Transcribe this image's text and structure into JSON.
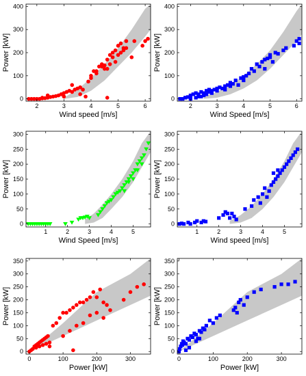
{
  "chart_data": [
    {
      "type": "scatter",
      "xlabel": "Wind speed [m/s]",
      "ylabel": "Power [kW]",
      "xlim": [
        1.6,
        6.2
      ],
      "ylim": [
        -10,
        410
      ],
      "xticks": [
        2,
        3,
        4,
        5,
        6
      ],
      "yticks": [
        0,
        100,
        200,
        300,
        400
      ],
      "band": {
        "x": [
          3.0,
          3.5,
          4.0,
          4.5,
          5.0,
          5.5,
          6.0,
          6.2
        ],
        "lower": [
          0,
          8,
          35,
          80,
          140,
          200,
          270,
          300
        ],
        "upper": [
          5,
          40,
          90,
          150,
          220,
          300,
          390,
          410
        ]
      },
      "series": [
        {
          "color": "#ff0000",
          "marker": "circle",
          "x": [
            1.7,
            1.8,
            1.9,
            2.0,
            2.1,
            2.2,
            2.3,
            2.4,
            2.5,
            2.6,
            2.7,
            2.2,
            2.4,
            2.8,
            2.9,
            3.0,
            3.1,
            3.0,
            3.2,
            3.3,
            3.4,
            3.5,
            3.6,
            3.7,
            3.6,
            3.8,
            3.3,
            3.9,
            4.0,
            4.1,
            4.2,
            4.3,
            4.4,
            4.5,
            4.6,
            4.7,
            4.8,
            4.9,
            5.0,
            5.1,
            5.2,
            5.3,
            4.6,
            4.7,
            4.8,
            4.9,
            5.0,
            5.1,
            5.2,
            5.3,
            5.5,
            5.6,
            5.9,
            6.0,
            6.1,
            4.0,
            4.2,
            4.5,
            4.6,
            4.4
          ],
          "y": [
            0,
            0,
            0,
            0,
            0,
            2,
            3,
            5,
            8,
            10,
            12,
            5,
            15,
            15,
            20,
            25,
            30,
            10,
            35,
            30,
            40,
            45,
            50,
            40,
            20,
            10,
            60,
            75,
            100,
            120,
            110,
            140,
            150,
            145,
            170,
            190,
            200,
            210,
            230,
            240,
            220,
            250,
            130,
            150,
            180,
            160,
            190,
            200,
            210,
            220,
            180,
            250,
            230,
            250,
            260,
            90,
            120,
            130,
            5,
            140
          ]
        }
      ]
    },
    {
      "type": "scatter",
      "xlabel": "Wind Speed [m/s]",
      "ylabel": "Power [kW]",
      "xlim": [
        1.5,
        6.2
      ],
      "ylim": [
        -10,
        410
      ],
      "xticks": [
        2,
        3,
        4,
        5,
        6
      ],
      "yticks": [
        0,
        100,
        200,
        300,
        400
      ],
      "band": {
        "x": [
          2.5,
          3.0,
          3.5,
          4.0,
          4.5,
          5.0,
          5.5,
          6.0,
          6.2
        ],
        "lower": [
          0,
          5,
          20,
          45,
          80,
          130,
          190,
          250,
          280
        ],
        "upper": [
          10,
          30,
          60,
          100,
          150,
          210,
          290,
          380,
          410
        ]
      },
      "series": [
        {
          "color": "#0000ff",
          "marker": "square",
          "x": [
            1.6,
            1.7,
            1.8,
            1.9,
            2.0,
            2.0,
            2.1,
            2.2,
            2.2,
            2.3,
            2.3,
            2.4,
            2.5,
            2.5,
            2.6,
            2.6,
            2.7,
            2.7,
            2.8,
            2.8,
            2.9,
            3.0,
            3.0,
            3.1,
            3.2,
            3.3,
            3.3,
            3.4,
            3.5,
            3.5,
            3.6,
            3.7,
            3.8,
            3.9,
            4.0,
            4.0,
            4.1,
            4.2,
            4.3,
            4.4,
            4.5,
            4.6,
            4.7,
            4.8,
            4.8,
            4.9,
            5.0,
            5.0,
            5.1,
            5.2,
            5.3,
            5.5,
            5.6,
            5.9,
            6.0,
            6.1,
            6.1,
            1.8,
            2.0,
            2.4
          ],
          "y": [
            0,
            0,
            5,
            8,
            10,
            15,
            20,
            5,
            25,
            20,
            10,
            30,
            25,
            15,
            35,
            20,
            30,
            40,
            35,
            25,
            40,
            45,
            35,
            50,
            45,
            55,
            40,
            60,
            70,
            55,
            65,
            80,
            60,
            90,
            80,
            95,
            100,
            110,
            130,
            120,
            150,
            140,
            160,
            170,
            130,
            175,
            180,
            190,
            160,
            200,
            195,
            210,
            220,
            230,
            250,
            260,
            240,
            5,
            0,
            10
          ]
        }
      ]
    },
    {
      "type": "scatter",
      "xlabel": "Wind Speed [m/s]",
      "ylabel": "Power [kW]",
      "xlim": [
        0.1,
        5.8
      ],
      "ylim": [
        -10,
        310
      ],
      "xticks": [
        1,
        2,
        3,
        4,
        5
      ],
      "yticks": [
        0,
        50,
        100,
        150,
        200,
        250,
        300
      ],
      "band": {
        "x": [
          2.8,
          3.2,
          3.6,
          4.0,
          4.5,
          5.0,
          5.4,
          5.8
        ],
        "lower": [
          0,
          5,
          20,
          50,
          90,
          140,
          190,
          240
        ],
        "upper": [
          15,
          35,
          65,
          100,
          150,
          210,
          270,
          310
        ]
      },
      "series": [
        {
          "color": "#00ff00",
          "marker": "triangle-down",
          "x": [
            0.2,
            0.3,
            0.4,
            0.5,
            0.6,
            0.7,
            0.8,
            0.9,
            1.0,
            1.1,
            1.2,
            1.9,
            2.2,
            2.5,
            2.6,
            2.7,
            2.8,
            2.9,
            3.0,
            3.4,
            3.5,
            3.6,
            3.7,
            3.8,
            3.9,
            4.0,
            4.1,
            4.2,
            4.3,
            4.4,
            4.5,
            4.6,
            4.7,
            4.8,
            4.9,
            5.0,
            5.1,
            5.2,
            5.3,
            5.4,
            5.5,
            5.6,
            5.7,
            4.6,
            4.8,
            5.0,
            5.2,
            5.4
          ],
          "y": [
            0,
            0,
            0,
            0,
            0,
            0,
            0,
            0,
            0,
            0,
            0,
            0,
            5,
            15,
            20,
            20,
            22,
            25,
            20,
            30,
            40,
            50,
            60,
            70,
            75,
            80,
            90,
            100,
            105,
            110,
            120,
            130,
            140,
            150,
            160,
            170,
            180,
            200,
            210,
            220,
            230,
            250,
            270,
            110,
            140,
            150,
            180,
            200
          ]
        }
      ]
    },
    {
      "type": "scatter",
      "xlabel": "Wind speed [m/s]",
      "ylabel": "Power [kW]",
      "xlim": [
        0.1,
        5.8
      ],
      "ylim": [
        -10,
        310
      ],
      "xticks": [
        1,
        2,
        3,
        4,
        5
      ],
      "yticks": [
        0,
        50,
        100,
        150,
        200,
        250,
        300
      ],
      "band": {
        "x": [
          2.5,
          3.0,
          3.5,
          4.0,
          4.5,
          5.0,
          5.4,
          5.8
        ],
        "lower": [
          0,
          5,
          20,
          50,
          90,
          140,
          190,
          240
        ],
        "upper": [
          10,
          30,
          60,
          100,
          150,
          210,
          270,
          310
        ]
      },
      "series": [
        {
          "color": "#0000ff",
          "marker": "square",
          "x": [
            0.2,
            0.3,
            0.4,
            0.6,
            0.7,
            0.9,
            1.0,
            1.2,
            1.3,
            1.4,
            2.0,
            2.2,
            2.3,
            2.4,
            2.5,
            2.6,
            2.7,
            2.8,
            3.2,
            3.5,
            3.6,
            3.8,
            3.9,
            4.0,
            4.1,
            4.2,
            4.3,
            4.4,
            4.5,
            4.6,
            4.7,
            4.8,
            4.9,
            5.0,
            5.1,
            5.2,
            5.3,
            5.4,
            5.5,
            5.6,
            4.5,
            4.7
          ],
          "y": [
            0,
            2,
            0,
            5,
            0,
            5,
            10,
            5,
            10,
            8,
            20,
            30,
            40,
            35,
            20,
            35,
            25,
            15,
            50,
            60,
            80,
            90,
            70,
            100,
            120,
            90,
            110,
            130,
            140,
            150,
            160,
            170,
            180,
            190,
            200,
            210,
            220,
            230,
            240,
            250,
            170,
            180
          ]
        }
      ]
    },
    {
      "type": "scatter",
      "xlabel": "Power [kW]",
      "ylabel": "Power [kW]",
      "xlim": [
        -10,
        360
      ],
      "ylim": [
        -10,
        360
      ],
      "xticks": [
        0,
        100,
        200,
        300
      ],
      "yticks": [
        0,
        50,
        100,
        150,
        200,
        250,
        300,
        350
      ],
      "band": {
        "x": [
          0,
          100,
          200,
          300,
          360
        ],
        "lower": [
          0,
          60,
          120,
          180,
          216
        ],
        "upper": [
          0,
          110,
          230,
          300,
          360
        ]
      },
      "series": [
        {
          "color": "#ff0000",
          "marker": "circle",
          "x": [
            0,
            5,
            10,
            15,
            20,
            25,
            30,
            35,
            40,
            45,
            50,
            55,
            10,
            20,
            30,
            40,
            50,
            60,
            70,
            80,
            90,
            100,
            110,
            120,
            130,
            140,
            150,
            160,
            170,
            180,
            190,
            200,
            210,
            220,
            230,
            100,
            120,
            140,
            160,
            180,
            200,
            220,
            240,
            280,
            300,
            320,
            340,
            130,
            60
          ],
          "y": [
            0,
            5,
            10,
            20,
            25,
            30,
            35,
            40,
            45,
            50,
            55,
            60,
            10,
            15,
            20,
            25,
            30,
            35,
            100,
            110,
            130,
            150,
            150,
            160,
            170,
            180,
            190,
            190,
            200,
            210,
            230,
            210,
            240,
            190,
            180,
            60,
            80,
            100,
            110,
            140,
            150,
            130,
            160,
            200,
            230,
            250,
            260,
            5,
            20
          ]
        }
      ]
    },
    {
      "type": "scatter",
      "xlabel": "Power [kW]",
      "ylabel": "Power [kW]",
      "xlim": [
        -5,
        360
      ],
      "ylim": [
        -10,
        360
      ],
      "xticks": [
        0,
        100,
        200,
        300
      ],
      "yticks": [
        0,
        50,
        100,
        150,
        200,
        250,
        300,
        350
      ],
      "band": {
        "x": [
          0,
          100,
          200,
          300,
          360
        ],
        "lower": [
          0,
          60,
          120,
          180,
          216
        ],
        "upper": [
          0,
          110,
          230,
          300,
          360
        ]
      },
      "series": [
        {
          "color": "#0000ff",
          "marker": "square",
          "x": [
            0,
            2,
            5,
            8,
            10,
            12,
            15,
            20,
            25,
            30,
            35,
            40,
            45,
            50,
            55,
            60,
            65,
            70,
            75,
            80,
            90,
            100,
            110,
            120,
            160,
            165,
            170,
            175,
            180,
            190,
            200,
            220,
            240,
            280,
            300,
            320,
            340,
            20,
            30,
            50,
            60
          ],
          "y": [
            0,
            10,
            20,
            30,
            25,
            40,
            35,
            30,
            50,
            45,
            60,
            55,
            70,
            65,
            50,
            80,
            75,
            90,
            85,
            100,
            120,
            110,
            130,
            140,
            160,
            170,
            150,
            190,
            200,
            180,
            210,
            230,
            240,
            250,
            260,
            260,
            270,
            5,
            15,
            40,
            50
          ]
        }
      ]
    }
  ]
}
